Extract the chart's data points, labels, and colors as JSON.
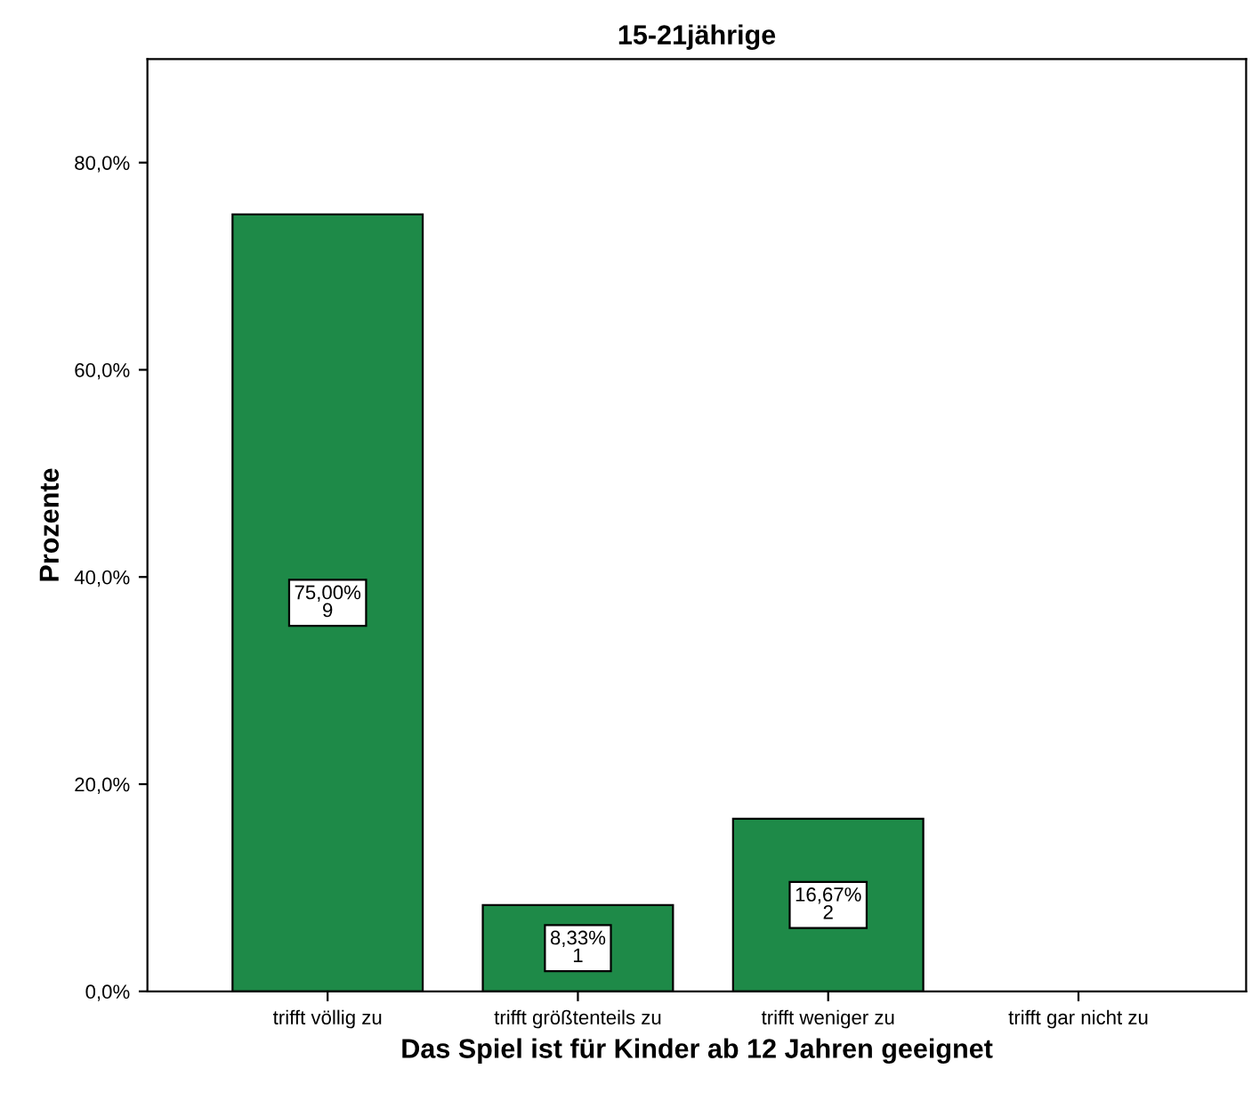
{
  "chart_data": {
    "type": "bar",
    "title": "15-21jährige",
    "xlabel": "Das Spiel ist für Kinder ab 12 Jahren geeignet",
    "ylabel": "Prozente",
    "categories": [
      "trifft völlig zu",
      "trifft größtenteils zu",
      "trifft weniger zu",
      "trifft gar nicht zu"
    ],
    "values": [
      75.0,
      8.33,
      16.67,
      0
    ],
    "value_labels": [
      "75,00%\n9",
      "8,33%\n1",
      "16,67%\n2",
      null
    ],
    "color": "#1e8a48",
    "ylim": [
      0,
      90
    ],
    "yticks": [
      {
        "value": 0,
        "label": "0,0%"
      },
      {
        "value": 20,
        "label": "20,0%"
      },
      {
        "value": 40,
        "label": "40,0%"
      },
      {
        "value": 60,
        "label": "60,0%"
      },
      {
        "value": 80,
        "label": "80,0%"
      }
    ],
    "grid": false,
    "legend": false
  }
}
